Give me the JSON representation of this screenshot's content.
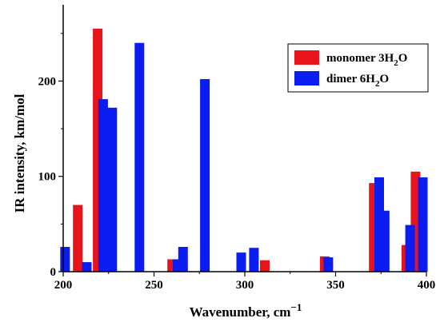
{
  "chart_data": {
    "type": "bar",
    "xlabel": "Wavenumber, cm",
    "xlabel_sup": "−1",
    "ylabel": "IR intensity, km/mol",
    "xlim": [
      200,
      400
    ],
    "ylim": [
      0,
      280
    ],
    "x_ticks": [
      200,
      250,
      300,
      350,
      400
    ],
    "y_ticks": [
      0,
      100,
      200
    ],
    "legend_position": "top-right",
    "series": [
      {
        "name": "monomer 3H2O",
        "name_parts": [
          "monomer 3H",
          "2",
          "O"
        ],
        "color": "#e8141b",
        "points": [
          {
            "x": 208,
            "y": 70
          },
          {
            "x": 219,
            "y": 255
          },
          {
            "x": 260,
            "y": 13
          },
          {
            "x": 311,
            "y": 12
          },
          {
            "x": 344,
            "y": 16
          },
          {
            "x": 371,
            "y": 93
          },
          {
            "x": 389,
            "y": 28
          },
          {
            "x": 394,
            "y": 105
          }
        ]
      },
      {
        "name": "dimer 6H2O",
        "name_parts": [
          "dimer 6H",
          "2",
          "O"
        ],
        "color": "#0a1cf0",
        "points": [
          {
            "x": 201,
            "y": 26
          },
          {
            "x": 213,
            "y": 10
          },
          {
            "x": 222,
            "y": 181
          },
          {
            "x": 227,
            "y": 172
          },
          {
            "x": 242,
            "y": 240
          },
          {
            "x": 263,
            "y": 13
          },
          {
            "x": 266,
            "y": 26
          },
          {
            "x": 278,
            "y": 202
          },
          {
            "x": 298,
            "y": 20
          },
          {
            "x": 305,
            "y": 25
          },
          {
            "x": 346,
            "y": 15
          },
          {
            "x": 374,
            "y": 99
          },
          {
            "x": 377,
            "y": 64
          },
          {
            "x": 391,
            "y": 49
          },
          {
            "x": 398,
            "y": 99
          }
        ]
      }
    ]
  }
}
